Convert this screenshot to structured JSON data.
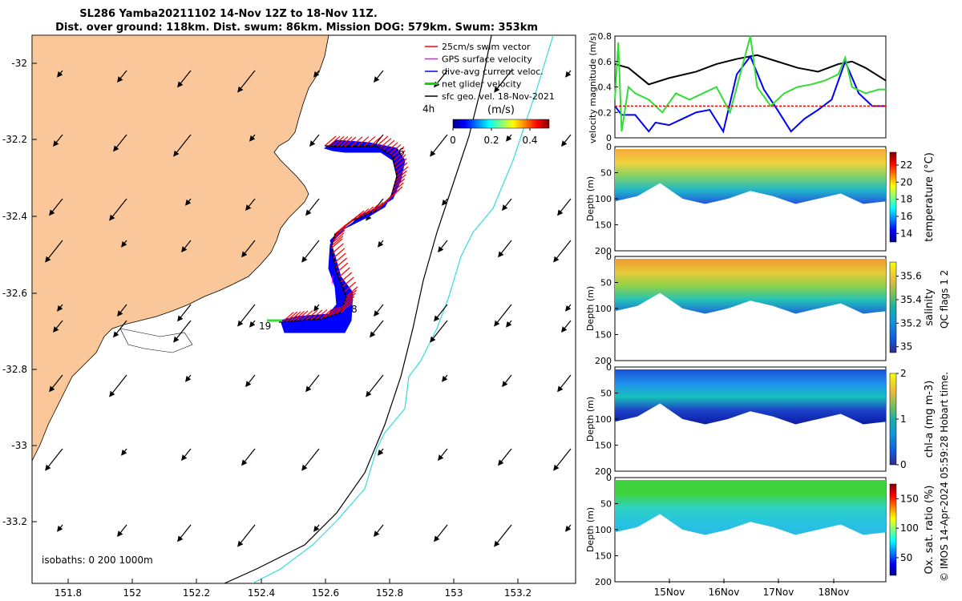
{
  "title": {
    "line1": "SL286 Yamba20211102 14-Nov 12Z to 18-Nov 11Z.",
    "line2": "Dist. over ground: 118km. Dist. swum: 86km. Mission DOG: 579km. Swum: 353km"
  },
  "map": {
    "lon_ticks": [
      "151.8",
      "152",
      "152.2",
      "152.4",
      "152.6",
      "152.8",
      "153",
      "153.2"
    ],
    "lat_ticks": [
      "-32",
      "-32.2",
      "-32.4",
      "-32.6",
      "-32.8",
      "-33",
      "-33.2"
    ],
    "legend": [
      {
        "label": "25cm/s swim vector",
        "color": "#ff0000"
      },
      {
        "label": "GPS surface velocity",
        "color": "#ff00ff"
      },
      {
        "label": "dive-avg current veloc.",
        "color": "#0000ff"
      },
      {
        "label": "net glider velocity",
        "color": "#00dd00"
      },
      {
        "label": "sfc geo. vel. 18-Nov-2021",
        "color": "#000000"
      }
    ],
    "legend_note": "4h",
    "colorbar": {
      "unit": "(m/s)",
      "ticks": [
        "0",
        "0.2",
        "0.4"
      ],
      "range": [
        0,
        0.5
      ]
    },
    "point_labels": [
      "6",
      "8",
      "19"
    ],
    "isobaths_label": "isobaths: 0   200  1000m",
    "colors": {
      "land": "#f9c79a",
      "isobath_200": "#000000",
      "isobath_1000": "#33dddd"
    }
  },
  "chart_data": [
    {
      "type": "line",
      "ylabel": "velocity magnitude (m/s)",
      "ylim": [
        0,
        0.8
      ],
      "yticks": [
        "0",
        "0.2",
        "0.4",
        "0.6",
        "0.8"
      ],
      "xlim_days": [
        14.5,
        18.5
      ],
      "series": [
        {
          "color": "#000000",
          "x": [
            14.5,
            14.7,
            15.0,
            15.3,
            15.7,
            16.0,
            16.3,
            16.6,
            16.9,
            17.2,
            17.5,
            17.8,
            18.0,
            18.2,
            18.5
          ],
          "values": [
            0.58,
            0.55,
            0.42,
            0.47,
            0.52,
            0.58,
            0.62,
            0.65,
            0.6,
            0.55,
            0.52,
            0.58,
            0.6,
            0.55,
            0.45
          ]
        },
        {
          "color": "#0000ff",
          "x": [
            14.5,
            14.6,
            14.8,
            15.0,
            15.1,
            15.3,
            15.5,
            15.7,
            15.9,
            16.1,
            16.3,
            16.5,
            16.7,
            16.9,
            17.1,
            17.3,
            17.5,
            17.7,
            17.9,
            18.1,
            18.3,
            18.5
          ],
          "values": [
            0.25,
            0.18,
            0.18,
            0.05,
            0.12,
            0.1,
            0.15,
            0.2,
            0.22,
            0.05,
            0.5,
            0.64,
            0.38,
            0.22,
            0.05,
            0.15,
            0.22,
            0.3,
            0.6,
            0.35,
            0.25,
            0.25
          ]
        },
        {
          "color": "#33dd33",
          "x": [
            14.5,
            14.55,
            14.6,
            14.7,
            14.8,
            15.0,
            15.2,
            15.4,
            15.6,
            15.8,
            16.0,
            16.2,
            16.4,
            16.5,
            16.6,
            16.8,
            17.0,
            17.2,
            17.4,
            17.6,
            17.8,
            17.9,
            18.0,
            18.2,
            18.4,
            18.5
          ],
          "values": [
            0.3,
            0.75,
            0.05,
            0.4,
            0.35,
            0.3,
            0.2,
            0.35,
            0.3,
            0.35,
            0.4,
            0.2,
            0.6,
            0.8,
            0.4,
            0.25,
            0.35,
            0.4,
            0.42,
            0.45,
            0.5,
            0.63,
            0.4,
            0.35,
            0.38,
            0.38
          ]
        },
        {
          "color": "#ff0000",
          "dashed": true,
          "x": [
            14.5,
            18.5
          ],
          "values": [
            0.25,
            0.25
          ]
        }
      ]
    },
    {
      "type": "heatmap",
      "ylabel": "Depth (m)",
      "colorbar_label": "temperature (°C)",
      "cticks": [
        "14",
        "16",
        "18",
        "20",
        "22"
      ],
      "clim": [
        13,
        23.5
      ]
    },
    {
      "type": "heatmap",
      "ylabel": "Depth (m)",
      "colorbar_label": "salinity",
      "cticks": [
        "35",
        "35.2",
        "35.4",
        "35.6"
      ],
      "clim": [
        34.95,
        35.72
      ]
    },
    {
      "type": "heatmap",
      "ylabel": "Depth (m)",
      "colorbar_label": "chl-a (mg m-3)",
      "cticks": [
        "0",
        "1",
        "2"
      ],
      "clim": [
        0,
        2
      ]
    },
    {
      "type": "heatmap",
      "ylabel": "Depth (m)",
      "colorbar_label": "Ox. sat. ratio (%)",
      "cticks": [
        "50",
        "100",
        "150"
      ],
      "clim": [
        20,
        175
      ]
    }
  ],
  "profile_common": {
    "depth_ticks": [
      "0",
      "50",
      "100",
      "150",
      "200"
    ],
    "time_ticks": [
      "15Nov",
      "16Nov",
      "17Nov",
      "18Nov"
    ],
    "qc_note": "QC flags 1  2"
  },
  "footer_credit": "© IMOS 14-Apr-2024 05:59:28 Hobart time."
}
